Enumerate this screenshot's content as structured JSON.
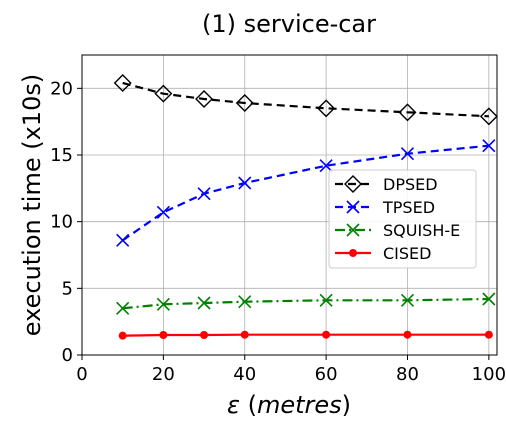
{
  "chart_data": {
    "type": "line",
    "title": "(1) service-car",
    "xlabel_symbol": "ε",
    "xlabel_unit": "metres",
    "ylabel": "execution time (x10s)",
    "xlim": [
      0,
      102
    ],
    "ylim": [
      0,
      22.5
    ],
    "xticks": [
      0,
      20,
      40,
      60,
      80,
      100
    ],
    "yticks": [
      0,
      5,
      10,
      15,
      20
    ],
    "grid": true,
    "legend_position": "center-right",
    "x": [
      10,
      20,
      30,
      40,
      60,
      80,
      100
    ],
    "series": [
      {
        "name": "DPSED",
        "color": "#000000",
        "dash": "8,5",
        "marker": "diamond",
        "values": [
          20.4,
          19.6,
          19.2,
          18.9,
          18.5,
          18.2,
          17.9
        ]
      },
      {
        "name": "TPSED",
        "color": "#0000ff",
        "dash": "8,5",
        "marker": "x",
        "values": [
          8.6,
          10.7,
          12.1,
          12.9,
          14.2,
          15.1,
          15.7
        ]
      },
      {
        "name": "SQUISH-E",
        "color": "#008000",
        "dash": "10,4,2,4",
        "marker": "x",
        "values": [
          3.5,
          3.8,
          3.9,
          4.0,
          4.1,
          4.1,
          4.2
        ]
      },
      {
        "name": "CISED",
        "color": "#ff0000",
        "dash": "",
        "marker": "dot",
        "values": [
          1.45,
          1.5,
          1.5,
          1.52,
          1.52,
          1.52,
          1.52
        ]
      }
    ]
  }
}
